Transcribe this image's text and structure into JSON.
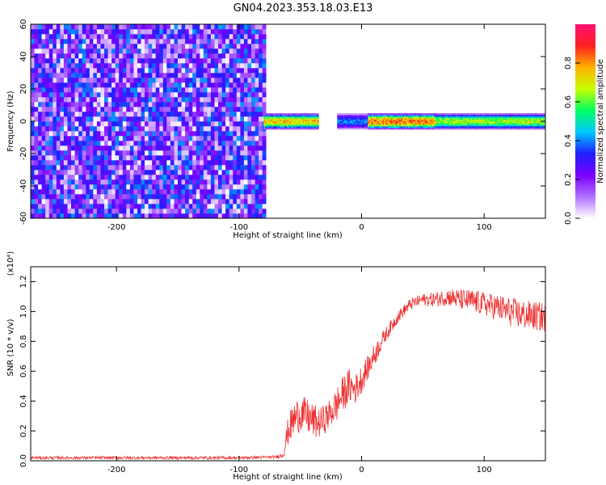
{
  "title": "GN04.2023.353.18.03.E13",
  "chart_data": [
    {
      "type": "heatmap",
      "xlabel": "Height of straight line (km)",
      "ylabel": "Frequency (Hz)",
      "xlim": [
        -270,
        150
      ],
      "ylim": [
        -60,
        60
      ],
      "x_ticks": [
        -200,
        -100,
        0,
        100
      ],
      "y_ticks": [
        -60,
        -40,
        -20,
        0,
        20,
        40,
        60
      ],
      "noise_region": {
        "x_range": [
          -270,
          -80
        ],
        "y_range": [
          -60,
          60
        ],
        "typical_amplitude": 0.15
      },
      "signal_band": {
        "x_range": [
          -80,
          150
        ],
        "center_frequency": 0,
        "half_width_hz": 3,
        "peak_amplitude": 0.95,
        "segments": [
          {
            "x_range": [
              -80,
              -35
            ],
            "amplitude": 0.85
          },
          {
            "x_range": [
              -20,
              5
            ],
            "amplitude": 0.45
          },
          {
            "x_range": [
              5,
              60
            ],
            "amplitude": 0.95
          },
          {
            "x_range": [
              60,
              150
            ],
            "amplitude": 0.75
          }
        ]
      },
      "colorbar": {
        "label": "Normalized spectral amplitude",
        "range": [
          0,
          1
        ],
        "ticks": [
          0.0,
          0.2,
          0.4,
          0.6,
          0.8
        ],
        "colormap": [
          "#ffffff",
          "#b070ff",
          "#7a00ff",
          "#2020ff",
          "#00c8ff",
          "#00ff60",
          "#c8ff00",
          "#ffb000",
          "#ff2020",
          "#ff1070"
        ]
      }
    },
    {
      "type": "line",
      "xlabel": "Height of straight line (km)",
      "ylabel": "SNR (10 * v/v)",
      "y_scale_label": "(x10⁴)",
      "xlim": [
        -270,
        150
      ],
      "ylim": [
        0,
        1.3
      ],
      "x_ticks": [
        -200,
        -100,
        0,
        100
      ],
      "y_ticks": [
        0.0,
        0.2,
        0.4,
        0.6,
        0.8,
        1.0,
        1.2
      ],
      "color": "#ee3333",
      "x": [
        -270,
        -200,
        -100,
        -70,
        -64,
        -60,
        -55,
        -50,
        -45,
        -40,
        -35,
        -30,
        -25,
        -20,
        -15,
        -10,
        -5,
        0,
        5,
        10,
        15,
        20,
        30,
        40,
        50,
        60,
        70,
        80,
        90,
        100,
        110,
        120,
        130,
        140,
        150
      ],
      "y": [
        0.02,
        0.02,
        0.02,
        0.025,
        0.04,
        0.2,
        0.28,
        0.32,
        0.3,
        0.27,
        0.25,
        0.28,
        0.32,
        0.38,
        0.45,
        0.5,
        0.48,
        0.55,
        0.62,
        0.7,
        0.78,
        0.85,
        0.97,
        1.05,
        1.08,
        1.08,
        1.1,
        1.08,
        1.07,
        1.05,
        1.03,
        1.0,
        0.98,
        0.97,
        0.96
      ],
      "noise_amplitude": [
        0.01,
        0.01,
        0.01,
        0.01,
        0.02,
        0.1,
        0.12,
        0.12,
        0.12,
        0.12,
        0.1,
        0.1,
        0.1,
        0.12,
        0.12,
        0.12,
        0.1,
        0.1,
        0.08,
        0.08,
        0.06,
        0.05,
        0.04,
        0.04,
        0.04,
        0.05,
        0.06,
        0.07,
        0.08,
        0.08,
        0.09,
        0.1,
        0.1,
        0.1,
        0.1
      ]
    }
  ]
}
